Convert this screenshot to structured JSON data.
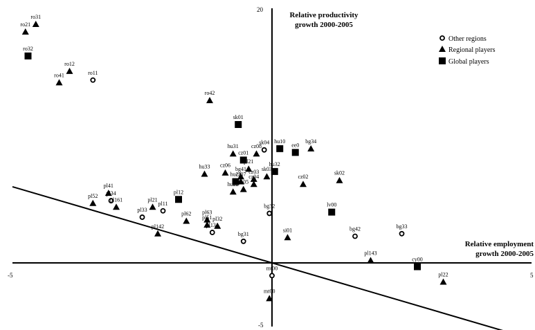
{
  "chart_data": {
    "type": "scatter",
    "xlabel": [
      "Relative employment",
      "growth 2000-2005"
    ],
    "ylabel": [
      "Relative productivity",
      "growth 2000-2005"
    ],
    "xlim": [
      -5,
      5
    ],
    "ylim": [
      -5,
      20
    ],
    "x_ticks": [
      "-5",
      "0",
      "5"
    ],
    "y_ticks": [
      "20",
      "0",
      "-5"
    ],
    "legend_position": "top-right",
    "series": [
      {
        "name": "Other regions",
        "marker": "circle-open",
        "points": [
          {
            "label": "ro11",
            "x": -3.45,
            "y": 14.4
          },
          {
            "label": "pl34",
            "x": -3.1,
            "y": 4.9
          },
          {
            "label": "pl33",
            "x": -2.5,
            "y": 3.6
          },
          {
            "label": "pl11",
            "x": -2.1,
            "y": 4.1
          },
          {
            "label": "pl131",
            "x": -1.15,
            "y": 2.4
          },
          {
            "label": "bg31",
            "x": -0.55,
            "y": 1.7
          },
          {
            "label": "sk04",
            "x": -0.15,
            "y": 8.9
          },
          {
            "label": "bg32",
            "x": -0.05,
            "y": 3.9
          },
          {
            "label": "bg42",
            "x": 1.6,
            "y": 2.1
          },
          {
            "label": "bg33",
            "x": 2.5,
            "y": 2.3
          },
          {
            "label": "mt00",
            "x": 0.0,
            "y": -1.0
          }
        ]
      },
      {
        "name": "Regional players",
        "marker": "triangle",
        "points": [
          {
            "label": "ro31",
            "x": -4.55,
            "y": 18.8
          },
          {
            "label": "ro21",
            "x": -4.75,
            "y": 18.2
          },
          {
            "label": "ro12",
            "x": -3.9,
            "y": 15.1
          },
          {
            "label": "ro41",
            "x": -4.1,
            "y": 14.2
          },
          {
            "label": "ro42",
            "x": -1.2,
            "y": 12.8
          },
          {
            "label": "cz08",
            "x": -0.3,
            "y": 8.6
          },
          {
            "label": "hu31",
            "x": -0.75,
            "y": 8.6
          },
          {
            "label": "bg34",
            "x": 0.75,
            "y": 9.0
          },
          {
            "label": "sk02",
            "x": 1.3,
            "y": 6.5
          },
          {
            "label": "cz02",
            "x": 0.6,
            "y": 6.2
          },
          {
            "label": "hu33",
            "x": -1.3,
            "y": 7.0
          },
          {
            "label": "cz06",
            "x": -0.9,
            "y": 7.1
          },
          {
            "label": "pl21",
            "x": -0.45,
            "y": 7.4
          },
          {
            "label": "bg41",
            "x": -0.6,
            "y": 6.8
          },
          {
            "label": "sk03",
            "x": -0.1,
            "y": 6.8
          },
          {
            "label": "cz03",
            "x": -0.35,
            "y": 6.6
          },
          {
            "label": "cz07",
            "x": -0.6,
            "y": 6.4
          },
          {
            "label": "cz04",
            "x": -0.35,
            "y": 6.2
          },
          {
            "label": "hu22",
            "x": -0.75,
            "y": 5.6
          },
          {
            "label": "cz05",
            "x": -0.55,
            "y": 5.8
          },
          {
            "label": "pl52",
            "x": -3.45,
            "y": 4.7
          },
          {
            "label": "pl41",
            "x": -3.15,
            "y": 5.5
          },
          {
            "label": "pl161",
            "x": -3.0,
            "y": 4.4
          },
          {
            "label": "pl21",
            "x": -2.3,
            "y": 4.4
          },
          {
            "label": "pl62",
            "x": -1.65,
            "y": 3.3
          },
          {
            "label": "pl51",
            "x": -1.25,
            "y": 3.0
          },
          {
            "label": "pl63",
            "x": -1.25,
            "y": 3.4
          },
          {
            "label": "pl32",
            "x": -1.05,
            "y": 2.9
          },
          {
            "label": "pl142",
            "x": -2.2,
            "y": 2.3
          },
          {
            "label": "si01",
            "x": 0.3,
            "y": 2.0
          },
          {
            "label": "pl143",
            "x": 1.9,
            "y": 0.2
          },
          {
            "label": "pl22",
            "x": 3.3,
            "y": -1.5
          },
          {
            "label": "mt00",
            "x": -0.05,
            "y": -2.8
          }
        ]
      },
      {
        "name": "Global players",
        "marker": "square",
        "points": [
          {
            "label": "ro32",
            "x": -4.7,
            "y": 16.3
          },
          {
            "label": "sk01",
            "x": -0.65,
            "y": 10.9
          },
          {
            "label": "hu10",
            "x": 0.15,
            "y": 9.0
          },
          {
            "label": "ee0",
            "x": 0.45,
            "y": 8.7
          },
          {
            "label": "cz01",
            "x": -0.55,
            "y": 8.1
          },
          {
            "label": "hu32",
            "x": 0.05,
            "y": 7.2
          },
          {
            "label": "hu23",
            "x": -0.7,
            "y": 6.4
          },
          {
            "label": "pl12",
            "x": -1.8,
            "y": 5.0
          },
          {
            "label": "lv00",
            "x": 1.15,
            "y": 4.0
          },
          {
            "label": "cy00",
            "x": 2.8,
            "y": -0.3
          }
        ]
      }
    ],
    "trend_line": {
      "x": [
        -5,
        5
      ],
      "y": [
        6.0,
        -6.0
      ]
    }
  }
}
